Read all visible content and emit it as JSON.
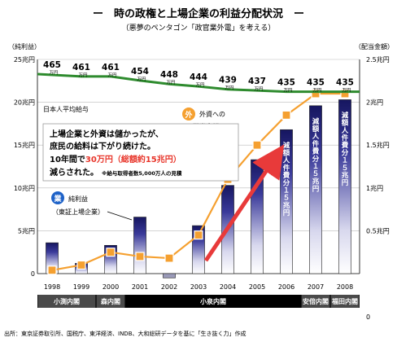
{
  "chart_data": {
    "type": "bar",
    "title": "ー　時の政権と上場企業の利益分配状況　ー",
    "subtitle": "（悪夢のペンタゴン「政官業外電」を考える）",
    "left_axis_label": "（純利益）",
    "right_axis_label": "（配当金額）",
    "left_ticks": [
      "0",
      "5兆円",
      "10兆円",
      "15兆円",
      "20兆円",
      "25兆円"
    ],
    "left_ylim": [
      0,
      25
    ],
    "right_ticks": [
      "0",
      "0.5兆円",
      "1兆円",
      "1.5兆円",
      "2兆円",
      "2.5兆円"
    ],
    "right_ylim": [
      0,
      2.5
    ],
    "categories": [
      "1998",
      "1999",
      "2000",
      "2001",
      "2002",
      "2003",
      "2004",
      "2005",
      "2006",
      "2007",
      "2008"
    ],
    "series": [
      {
        "name": "純利益（東証上場企業）",
        "kind": "bar",
        "values": [
          3.6,
          1.2,
          3.3,
          6.6,
          -0.5,
          5.6,
          10.3,
          13.3,
          16.8,
          19.6,
          20.3
        ],
        "color": "#2a2a8c"
      },
      {
        "name": "外資への配当金額",
        "kind": "line",
        "values": [
          0.04,
          0.1,
          0.25,
          0.2,
          0.18,
          0.45,
          1.1,
          1.5,
          1.85,
          2.1,
          2.1
        ],
        "color": "#f5a030"
      },
      {
        "name": "日本人平均給与",
        "kind": "line",
        "values": [
          465,
          461,
          461,
          454,
          448,
          444,
          439,
          437,
          435,
          435,
          435
        ],
        "color": "#2e8b2e"
      }
    ],
    "salary_unit": "万円",
    "salary_label": "日本人平均給与",
    "profit_badge": "業",
    "profit_label_1": "純利益",
    "profit_label_2": "（東証上場企業）",
    "foreign_badge": "外",
    "foreign_label_1": "外資への",
    "foreign_label_2": "配当金額",
    "callout": {
      "line1": "上場企業と外資は儲かったが、",
      "line2": "庶民の給料は下がり続けた。",
      "line3_a": "10年間で",
      "line3_b": "30万円",
      "line3_c": "（総額約15兆円）",
      "line4_a": "減らされた。",
      "line4_b": "※給与取得者数5,000万人の見積"
    },
    "bar_labels": [
      {
        "year": "2006",
        "text": "減額人件費分１５兆円"
      },
      {
        "year": "2007",
        "text": "減額人件費分１５兆円"
      },
      {
        "year": "2008",
        "text": "減額人件費分１５兆円"
      }
    ],
    "cabinets": [
      {
        "name": "小渕内閣",
        "from": 0,
        "to": 1
      },
      {
        "name": "森内閣",
        "from": 2,
        "to": 2
      },
      {
        "name": "小泉内閣",
        "from": 3,
        "to": 8
      },
      {
        "name": "安倍内閣",
        "from": 9,
        "to": 9
      },
      {
        "name": "福田内閣",
        "from": 10,
        "to": 10
      }
    ],
    "source": "出所：東京証券取引所、国税庁、東洋経済、INDB、大和総研データを基に「生き抜く力」作成",
    "grid": true,
    "colors": {
      "bar": "#2a2a8c",
      "dividend": "#f5a030",
      "salary": "#2e8b2e",
      "arrow": "#e83a3a",
      "cabinet_bg": "#000000",
      "badge_blue": "#1e62c8"
    }
  }
}
